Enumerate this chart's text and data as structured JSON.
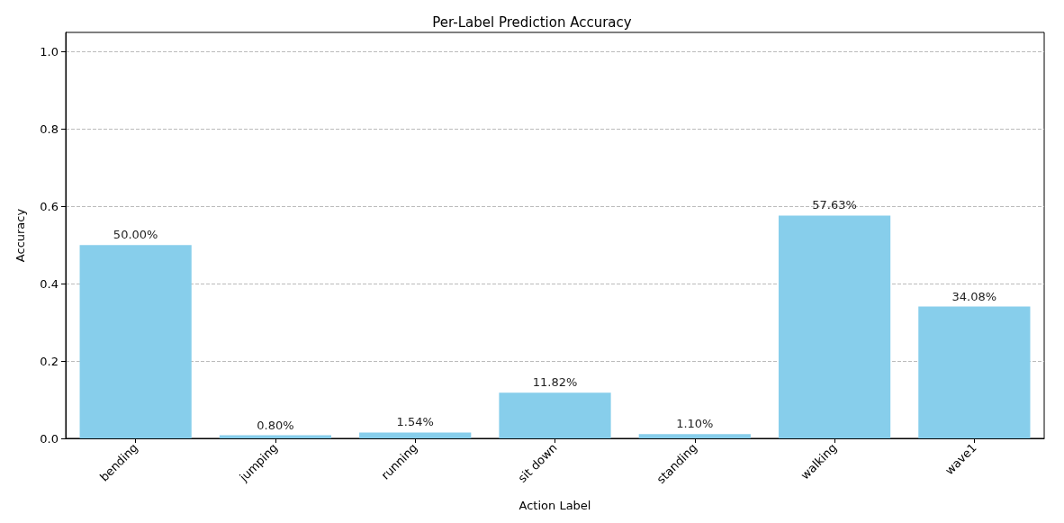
{
  "chart_data": {
    "type": "bar",
    "title": "Per-Label Prediction Accuracy",
    "xlabel": "Action Label",
    "ylabel": "Accuracy",
    "categories": [
      "bending",
      "jumping",
      "running",
      "sit down",
      "standing",
      "walking",
      "wave1"
    ],
    "values": [
      0.5,
      0.008,
      0.0154,
      0.1182,
      0.011,
      0.5763,
      0.3408
    ],
    "value_labels": [
      "50.00%",
      "0.80%",
      "1.54%",
      "11.82%",
      "1.10%",
      "57.63%",
      "34.08%"
    ],
    "color": "#87ceeb",
    "ylim": [
      0,
      1.05
    ],
    "yticks": [
      {
        "value": 0,
        "label": "0.0"
      },
      {
        "value": 0.2,
        "label": "0.2"
      },
      {
        "value": 0.4,
        "label": "0.4"
      },
      {
        "value": 0.6,
        "label": "0.6"
      },
      {
        "value": 0.8,
        "label": "0.8"
      },
      {
        "value": 1,
        "label": "1.0"
      }
    ],
    "grid": "y"
  }
}
